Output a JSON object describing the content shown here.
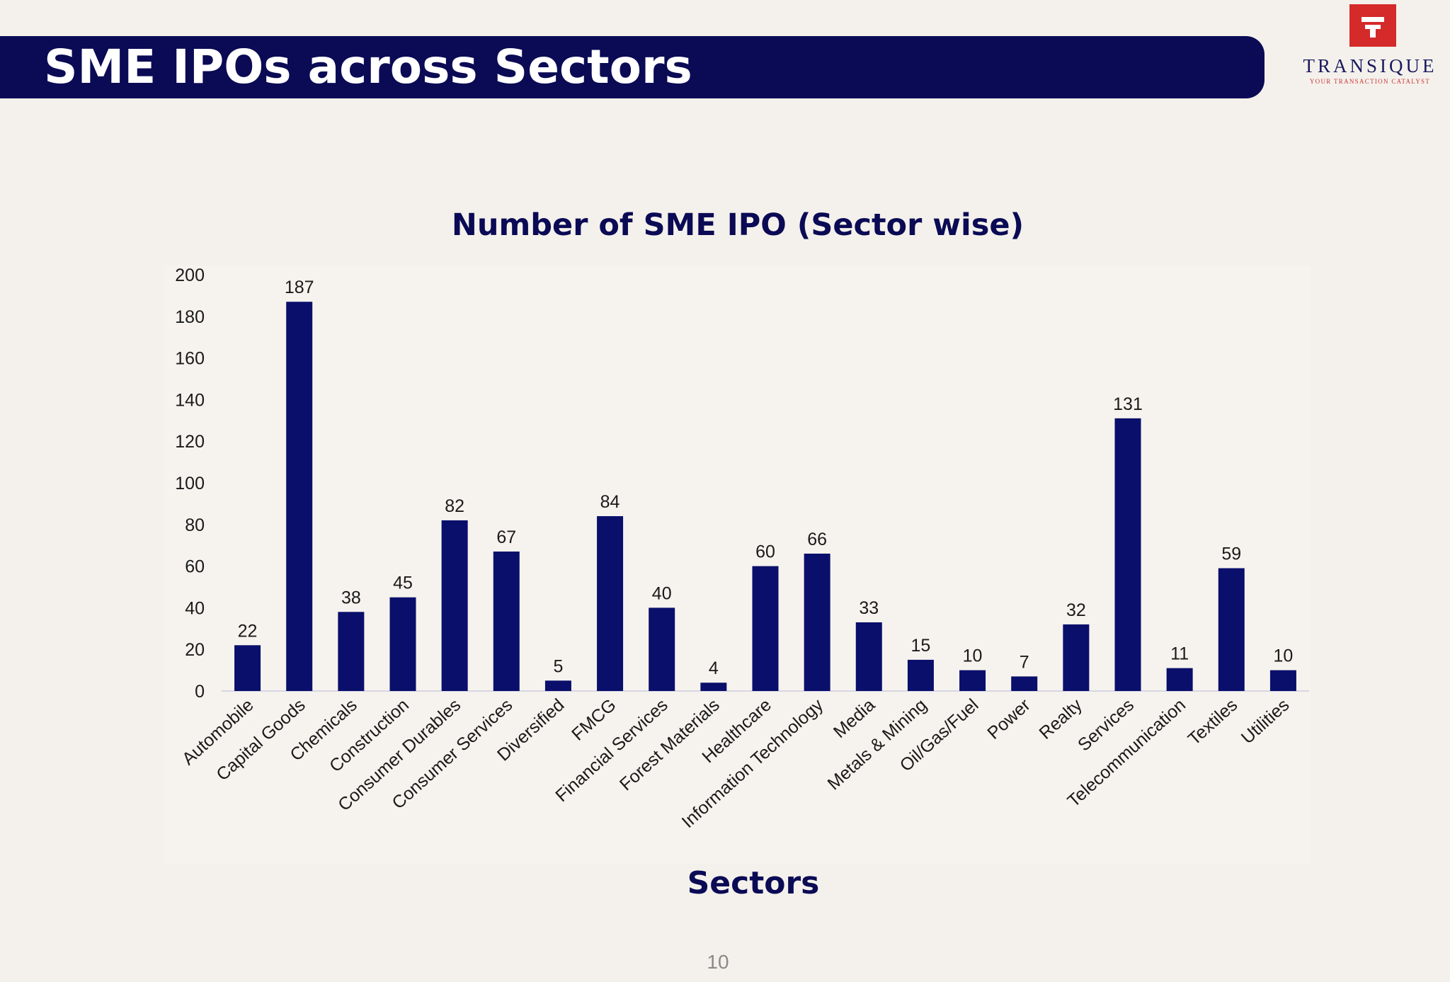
{
  "header": {
    "title": "SME IPOs across Sectors"
  },
  "logo": {
    "name": "TRANSIQUE",
    "tagline": "YOUR TRANSACTION CATALYST",
    "colors": {
      "mark": "#d42a2a",
      "text": "#1a1a5e"
    }
  },
  "page_number": "10",
  "chart_data": {
    "type": "bar",
    "title": "Number of SME IPO (Sector wise)",
    "xlabel": "Sectors",
    "ylabel": "",
    "ylim": [
      0,
      200
    ],
    "yticks": [
      0,
      20,
      40,
      60,
      80,
      100,
      120,
      140,
      160,
      180,
      200
    ],
    "grid": false,
    "legend": "none",
    "bar_color": "#0a0f6b",
    "categories": [
      "Automobile",
      "Capital Goods",
      "Chemicals",
      "Construction",
      "Consumer Durables",
      "Consumer Services",
      "Diversified",
      "FMCG",
      "Financial Services",
      "Forest Materials",
      "Healthcare",
      "Information Technology",
      "Media",
      "Metals & Mining",
      "Oil/Gas/Fuel",
      "Power",
      "Realty",
      "Services",
      "Telecommunication",
      "Textiles",
      "Utilities"
    ],
    "values": [
      22,
      187,
      38,
      45,
      82,
      67,
      5,
      84,
      40,
      4,
      60,
      66,
      33,
      15,
      10,
      7,
      32,
      131,
      11,
      59,
      10
    ]
  }
}
